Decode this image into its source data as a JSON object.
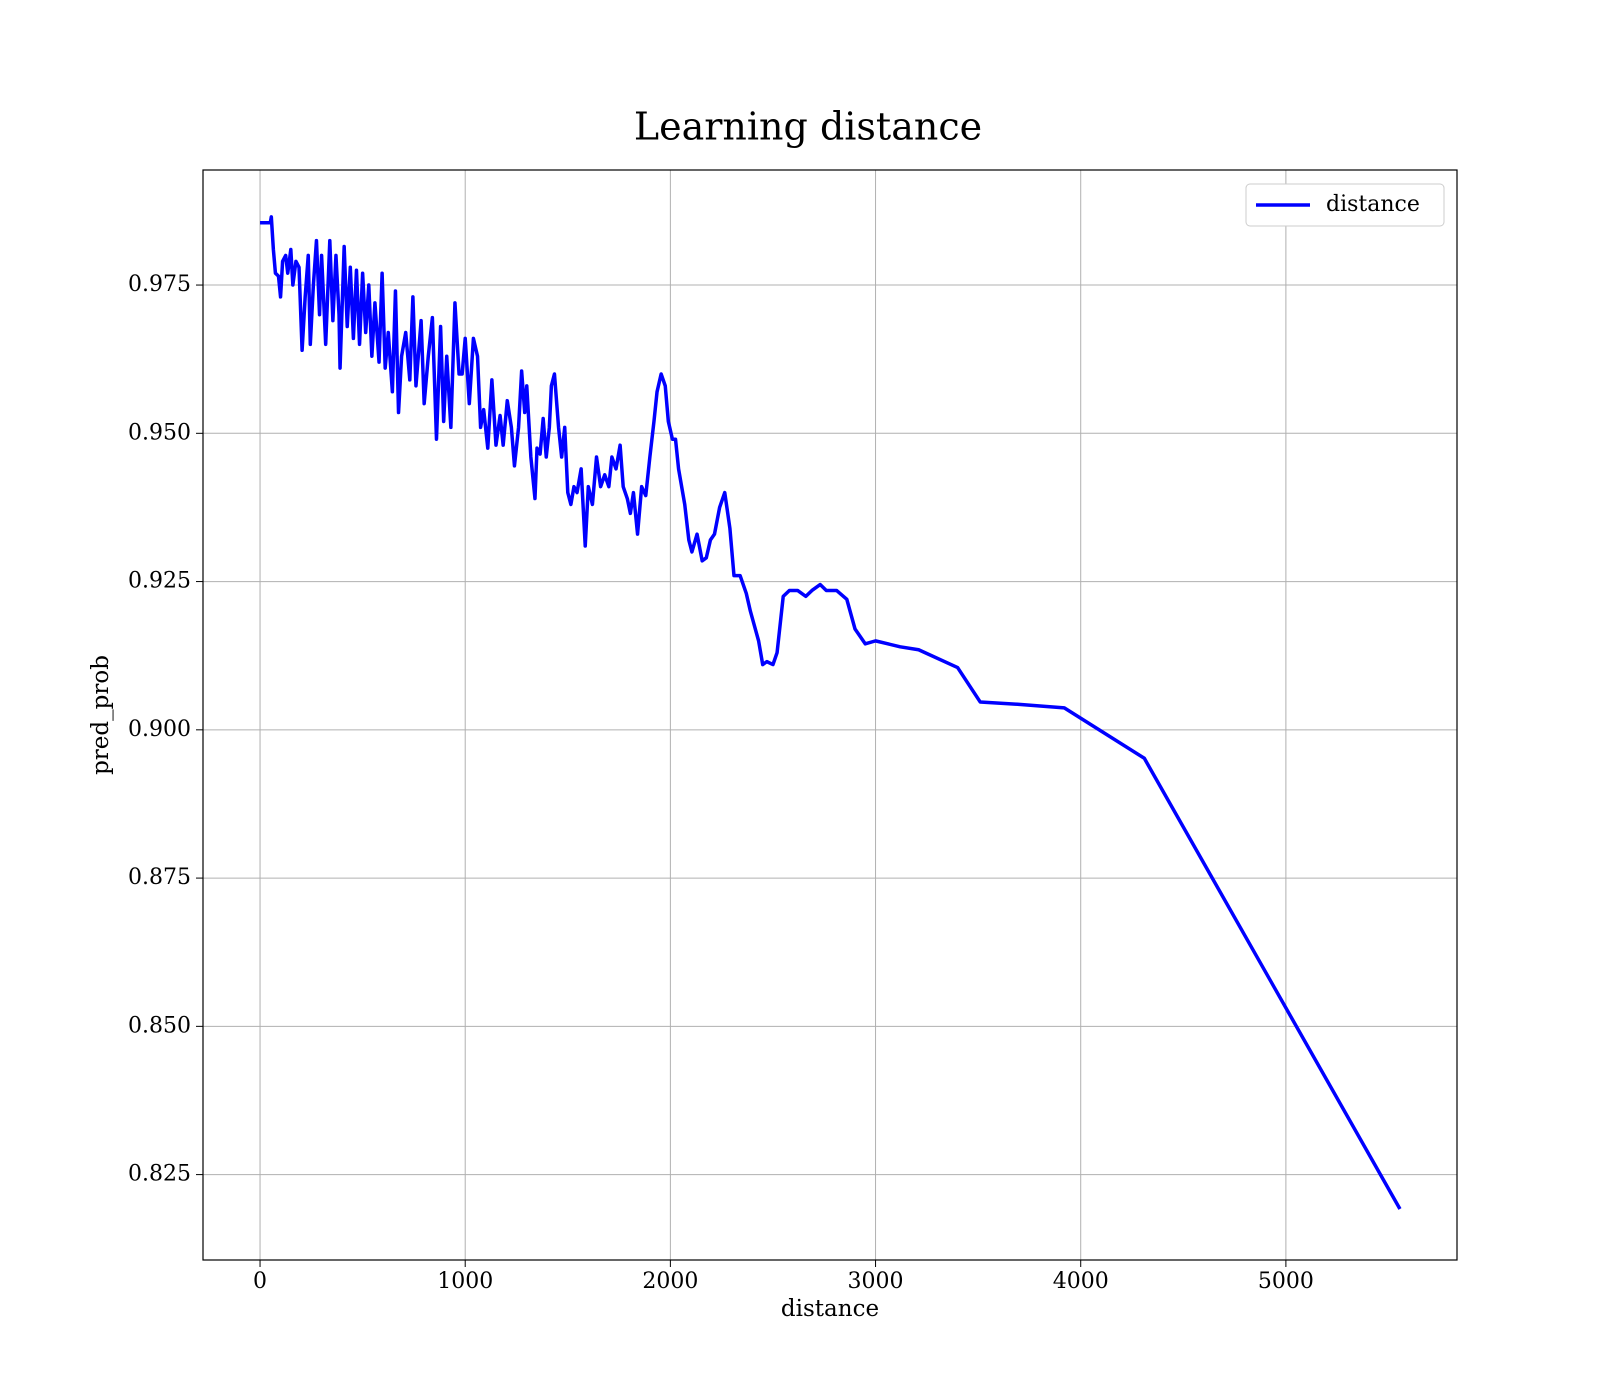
{
  "chart_data": {
    "type": "line",
    "title": "Learning distance",
    "xlabel": "distance",
    "ylabel": "pred_prob",
    "x": [
      0,
      50,
      55,
      65,
      75,
      90,
      100,
      110,
      125,
      135,
      150,
      160,
      175,
      190,
      205,
      220,
      235,
      245,
      260,
      275,
      290,
      300,
      320,
      340,
      355,
      370,
      385,
      390,
      410,
      425,
      440,
      455,
      470,
      485,
      500,
      515,
      530,
      545,
      560,
      580,
      595,
      610,
      625,
      645,
      660,
      675,
      690,
      710,
      730,
      745,
      760,
      785,
      800,
      820,
      840,
      860,
      880,
      895,
      910,
      930,
      950,
      970,
      985,
      1000,
      1020,
      1040,
      1060,
      1075,
      1090,
      1110,
      1130,
      1150,
      1170,
      1185,
      1205,
      1225,
      1240,
      1260,
      1275,
      1290,
      1300,
      1320,
      1340,
      1350,
      1365,
      1380,
      1395,
      1410,
      1420,
      1435,
      1455,
      1470,
      1485,
      1500,
      1515,
      1530,
      1545,
      1565,
      1585,
      1600,
      1620,
      1640,
      1660,
      1680,
      1700,
      1715,
      1735,
      1755,
      1770,
      1790,
      1805,
      1820,
      1840,
      1860,
      1880,
      1900,
      1920,
      1935,
      1955,
      1975,
      1990,
      2010,
      2025,
      2040,
      2070,
      2090,
      2105,
      2130,
      2155,
      2175,
      2195,
      2215,
      2240,
      2265,
      2290,
      2310,
      2340,
      2370,
      2390,
      2430,
      2450,
      2470,
      2500,
      2520,
      2550,
      2580,
      2620,
      2660,
      2690,
      2730,
      2760,
      2810,
      2860,
      2900,
      2950,
      3000,
      3060,
      3120,
      3210,
      3400,
      3510,
      3700,
      3920,
      4310,
      5556
    ],
    "series": [
      {
        "name": "distance",
        "color": "#0000ff",
        "values": [
          0.9855,
          0.9855,
          0.9865,
          0.981,
          0.977,
          0.9765,
          0.973,
          0.979,
          0.98,
          0.977,
          0.981,
          0.975,
          0.979,
          0.978,
          0.964,
          0.973,
          0.98,
          0.965,
          0.975,
          0.9825,
          0.97,
          0.98,
          0.965,
          0.9825,
          0.969,
          0.98,
          0.97,
          0.961,
          0.9815,
          0.968,
          0.978,
          0.966,
          0.9775,
          0.965,
          0.977,
          0.967,
          0.975,
          0.963,
          0.972,
          0.962,
          0.977,
          0.961,
          0.967,
          0.957,
          0.974,
          0.9535,
          0.963,
          0.967,
          0.959,
          0.973,
          0.958,
          0.969,
          0.955,
          0.963,
          0.9695,
          0.949,
          0.968,
          0.952,
          0.963,
          0.951,
          0.972,
          0.96,
          0.96,
          0.966,
          0.955,
          0.966,
          0.963,
          0.951,
          0.954,
          0.9475,
          0.959,
          0.948,
          0.953,
          0.948,
          0.9555,
          0.951,
          0.9445,
          0.951,
          0.9605,
          0.9535,
          0.958,
          0.946,
          0.939,
          0.9475,
          0.9465,
          0.9525,
          0.946,
          0.951,
          0.958,
          0.96,
          0.951,
          0.946,
          0.951,
          0.94,
          0.938,
          0.941,
          0.94,
          0.944,
          0.931,
          0.941,
          0.938,
          0.946,
          0.941,
          0.943,
          0.941,
          0.946,
          0.944,
          0.948,
          0.941,
          0.939,
          0.9365,
          0.94,
          0.933,
          0.941,
          0.9395,
          0.946,
          0.952,
          0.957,
          0.96,
          0.958,
          0.952,
          0.949,
          0.949,
          0.944,
          0.938,
          0.932,
          0.93,
          0.933,
          0.9285,
          0.929,
          0.932,
          0.933,
          0.9375,
          0.94,
          0.934,
          0.926,
          0.926,
          0.923,
          0.92,
          0.915,
          0.911,
          0.9115,
          0.911,
          0.913,
          0.9225,
          0.9235,
          0.9235,
          0.9225,
          0.9235,
          0.9245,
          0.9235,
          0.9235,
          0.922,
          0.917,
          0.9145,
          0.915,
          0.9145,
          0.914,
          0.9135,
          0.9105,
          0.9047,
          0.9043,
          0.9037,
          0.8952,
          0.8192
        ]
      }
    ],
    "xlim": [
      -278,
      5834
    ],
    "xticks": [
      0,
      1000,
      2000,
      3000,
      4000,
      5000
    ],
    "ylim": [
      0.8106,
      0.9944
    ],
    "yticks": [
      0.825,
      {
        "value": 0.85,
        "label": "0.850"
      },
      0.875,
      {
        "value": 0.9,
        "label": "0.900"
      },
      0.925,
      {
        "value": 0.95,
        "label": "0.950"
      },
      0.975
    ],
    "grid": true,
    "legend": "upper right"
  }
}
